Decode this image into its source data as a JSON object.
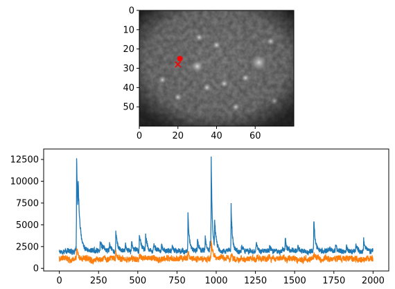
{
  "chart_data": [
    {
      "type": "heatmap",
      "title": "",
      "colormap": "gray",
      "image_shape": [
        60,
        80
      ],
      "xlim": [
        0,
        80
      ],
      "ylim": [
        60,
        0
      ],
      "x_ticks": [
        0,
        20,
        40,
        60
      ],
      "y_ticks": [
        0,
        10,
        20,
        30,
        40,
        50
      ],
      "markers": [
        {
          "type": "circle",
          "color": "#ff0000",
          "x": 21,
          "y": 25
        },
        {
          "type": "x",
          "color": "#ff0000",
          "x": 20,
          "y": 28
        }
      ],
      "bright_spots": [
        {
          "x": 62,
          "y": 27,
          "size": 4
        },
        {
          "x": 30,
          "y": 29,
          "size": 3
        },
        {
          "x": 31,
          "y": 14,
          "size": 2
        },
        {
          "x": 68,
          "y": 16,
          "size": 2
        },
        {
          "x": 20,
          "y": 45,
          "size": 2
        },
        {
          "x": 44,
          "y": 38,
          "size": 2
        },
        {
          "x": 12,
          "y": 36,
          "size": 2
        },
        {
          "x": 35,
          "y": 40,
          "size": 2
        },
        {
          "x": 55,
          "y": 35,
          "size": 2
        },
        {
          "x": 70,
          "y": 47,
          "size": 2
        },
        {
          "x": 40,
          "y": 18,
          "size": 2
        },
        {
          "x": 50,
          "y": 50,
          "size": 2
        }
      ]
    },
    {
      "type": "line",
      "title": "",
      "xlabel": "",
      "ylabel": "",
      "xlim": [
        -100,
        2100
      ],
      "ylim": [
        -300,
        13700
      ],
      "x_ticks": [
        0,
        250,
        500,
        750,
        1000,
        1250,
        1500,
        1750,
        2000
      ],
      "y_ticks": [
        0,
        2500,
        5000,
        7500,
        10000,
        12500
      ],
      "n_points": 2000,
      "series": [
        {
          "color": "#1f77b4",
          "baseline": 2000,
          "noise": 280,
          "peaks": [
            {
              "x": 110,
              "height": 10800,
              "decay": 10
            },
            {
              "x": 120,
              "height": 4000,
              "decay": 15
            },
            {
              "x": 260,
              "height": 1300,
              "decay": 15
            },
            {
              "x": 320,
              "height": 1000,
              "decay": 10
            },
            {
              "x": 360,
              "height": 2100,
              "decay": 12
            },
            {
              "x": 420,
              "height": 900,
              "decay": 10
            },
            {
              "x": 460,
              "height": 1000,
              "decay": 10
            },
            {
              "x": 510,
              "height": 1900,
              "decay": 12
            },
            {
              "x": 550,
              "height": 1700,
              "decay": 12
            },
            {
              "x": 600,
              "height": 700,
              "decay": 10
            },
            {
              "x": 650,
              "height": 600,
              "decay": 10
            },
            {
              "x": 720,
              "height": 700,
              "decay": 10
            },
            {
              "x": 820,
              "height": 4500,
              "decay": 8
            },
            {
              "x": 880,
              "height": 1300,
              "decay": 10
            },
            {
              "x": 930,
              "height": 1500,
              "decay": 8
            },
            {
              "x": 960,
              "height": 1000,
              "decay": 8
            },
            {
              "x": 968,
              "height": 10400,
              "decay": 7
            },
            {
              "x": 990,
              "height": 3000,
              "decay": 12
            },
            {
              "x": 1095,
              "height": 5300,
              "decay": 8
            },
            {
              "x": 1160,
              "height": 800,
              "decay": 10
            },
            {
              "x": 1255,
              "height": 1000,
              "decay": 10
            },
            {
              "x": 1340,
              "height": 500,
              "decay": 10
            },
            {
              "x": 1440,
              "height": 1400,
              "decay": 10
            },
            {
              "x": 1520,
              "height": 600,
              "decay": 10
            },
            {
              "x": 1622,
              "height": 3500,
              "decay": 10
            },
            {
              "x": 1760,
              "height": 600,
              "decay": 10
            },
            {
              "x": 1830,
              "height": 600,
              "decay": 10
            },
            {
              "x": 1890,
              "height": 800,
              "decay": 10
            },
            {
              "x": 1940,
              "height": 1400,
              "decay": 10
            }
          ]
        },
        {
          "color": "#ff7f0e",
          "baseline": 1100,
          "noise": 330,
          "peaks": [
            {
              "x": 110,
              "height": 1100,
              "decay": 12
            },
            {
              "x": 360,
              "height": 800,
              "decay": 10
            },
            {
              "x": 510,
              "height": 600,
              "decay": 10
            },
            {
              "x": 820,
              "height": 700,
              "decay": 10
            },
            {
              "x": 968,
              "height": 2000,
              "decay": 10
            },
            {
              "x": 1095,
              "height": 600,
              "decay": 10
            },
            {
              "x": 1622,
              "height": 300,
              "decay": 10
            }
          ]
        }
      ]
    }
  ]
}
